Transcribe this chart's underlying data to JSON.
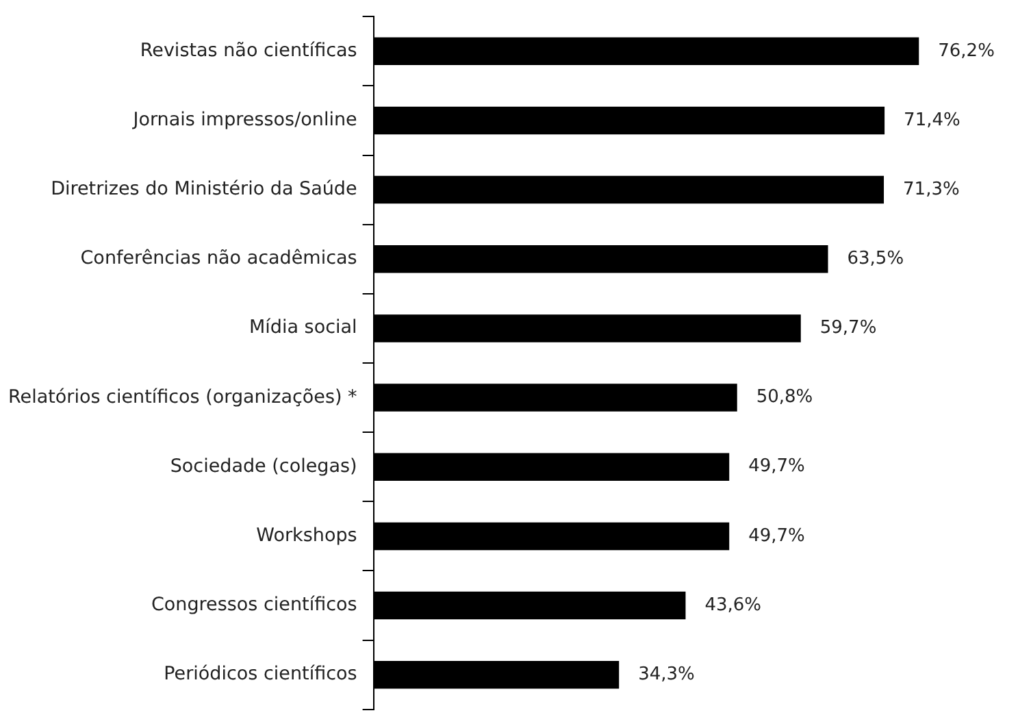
{
  "chart_data": {
    "type": "bar",
    "orientation": "horizontal",
    "categories": [
      "Revistas não científicas",
      "Jornais impressos/online",
      "Diretrizes do Ministério da Saúde",
      "Conferências não acadêmicas",
      "Mídia social",
      "Relatórios científicos (organizações) *",
      "Sociedade (colegas)",
      "Workshops",
      "Congressos científicos",
      "Periódicos científicos"
    ],
    "values": [
      76.2,
      71.4,
      71.3,
      63.5,
      59.7,
      50.8,
      49.7,
      49.7,
      43.6,
      34.3
    ],
    "value_labels": [
      "76,2%",
      "71,4%",
      "71,3%",
      "63,5%",
      "59,7%",
      "50,8%",
      "49,7%",
      "49,7%",
      "43,6%",
      "34,3%"
    ],
    "color": "#000000",
    "tick_labels": "y",
    "legend": false
  }
}
